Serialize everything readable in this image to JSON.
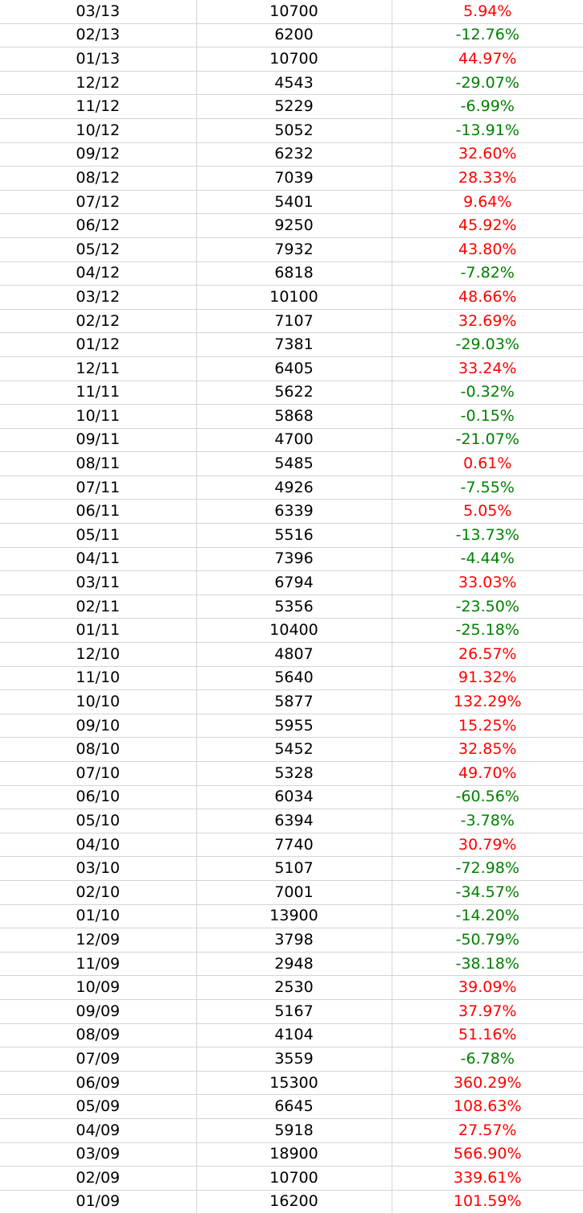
{
  "colors": {
    "positive": "#ff0000",
    "negative": "#008000",
    "text": "#000000",
    "grid": "#d4d4d4"
  },
  "rows": [
    {
      "month": "03/13",
      "value": "10700",
      "change": "5.94%"
    },
    {
      "month": "02/13",
      "value": "6200",
      "change": "-12.76%"
    },
    {
      "month": "01/13",
      "value": "10700",
      "change": "44.97%"
    },
    {
      "month": "12/12",
      "value": "4543",
      "change": "-29.07%"
    },
    {
      "month": "11/12",
      "value": "5229",
      "change": "-6.99%"
    },
    {
      "month": "10/12",
      "value": "5052",
      "change": "-13.91%"
    },
    {
      "month": "09/12",
      "value": "6232",
      "change": "32.60%"
    },
    {
      "month": "08/12",
      "value": "7039",
      "change": "28.33%"
    },
    {
      "month": "07/12",
      "value": "5401",
      "change": "9.64%"
    },
    {
      "month": "06/12",
      "value": "9250",
      "change": "45.92%"
    },
    {
      "month": "05/12",
      "value": "7932",
      "change": "43.80%"
    },
    {
      "month": "04/12",
      "value": "6818",
      "change": "-7.82%"
    },
    {
      "month": "03/12",
      "value": "10100",
      "change": "48.66%"
    },
    {
      "month": "02/12",
      "value": "7107",
      "change": "32.69%"
    },
    {
      "month": "01/12",
      "value": "7381",
      "change": "-29.03%"
    },
    {
      "month": "12/11",
      "value": "6405",
      "change": "33.24%"
    },
    {
      "month": "11/11",
      "value": "5622",
      "change": "-0.32%"
    },
    {
      "month": "10/11",
      "value": "5868",
      "change": "-0.15%"
    },
    {
      "month": "09/11",
      "value": "4700",
      "change": "-21.07%"
    },
    {
      "month": "08/11",
      "value": "5485",
      "change": "0.61%"
    },
    {
      "month": "07/11",
      "value": "4926",
      "change": "-7.55%"
    },
    {
      "month": "06/11",
      "value": "6339",
      "change": "5.05%"
    },
    {
      "month": "05/11",
      "value": "5516",
      "change": "-13.73%"
    },
    {
      "month": "04/11",
      "value": "7396",
      "change": "-4.44%"
    },
    {
      "month": "03/11",
      "value": "6794",
      "change": "33.03%"
    },
    {
      "month": "02/11",
      "value": "5356",
      "change": "-23.50%"
    },
    {
      "month": "01/11",
      "value": "10400",
      "change": "-25.18%"
    },
    {
      "month": "12/10",
      "value": "4807",
      "change": "26.57%"
    },
    {
      "month": "11/10",
      "value": "5640",
      "change": "91.32%"
    },
    {
      "month": "10/10",
      "value": "5877",
      "change": "132.29%"
    },
    {
      "month": "09/10",
      "value": "5955",
      "change": "15.25%"
    },
    {
      "month": "08/10",
      "value": "5452",
      "change": "32.85%"
    },
    {
      "month": "07/10",
      "value": "5328",
      "change": "49.70%"
    },
    {
      "month": "06/10",
      "value": "6034",
      "change": "-60.56%"
    },
    {
      "month": "05/10",
      "value": "6394",
      "change": "-3.78%"
    },
    {
      "month": "04/10",
      "value": "7740",
      "change": "30.79%"
    },
    {
      "month": "03/10",
      "value": "5107",
      "change": "-72.98%"
    },
    {
      "month": "02/10",
      "value": "7001",
      "change": "-34.57%"
    },
    {
      "month": "01/10",
      "value": "13900",
      "change": "-14.20%"
    },
    {
      "month": "12/09",
      "value": "3798",
      "change": "-50.79%"
    },
    {
      "month": "11/09",
      "value": "2948",
      "change": "-38.18%"
    },
    {
      "month": "10/09",
      "value": "2530",
      "change": "39.09%"
    },
    {
      "month": "09/09",
      "value": "5167",
      "change": "37.97%"
    },
    {
      "month": "08/09",
      "value": "4104",
      "change": "51.16%"
    },
    {
      "month": "07/09",
      "value": "3559",
      "change": "-6.78%"
    },
    {
      "month": "06/09",
      "value": "15300",
      "change": "360.29%"
    },
    {
      "month": "05/09",
      "value": "6645",
      "change": "108.63%"
    },
    {
      "month": "04/09",
      "value": "5918",
      "change": "27.57%"
    },
    {
      "month": "03/09",
      "value": "18900",
      "change": "566.90%"
    },
    {
      "month": "02/09",
      "value": "10700",
      "change": "339.61%"
    },
    {
      "month": "01/09",
      "value": "16200",
      "change": "101.59%"
    }
  ]
}
